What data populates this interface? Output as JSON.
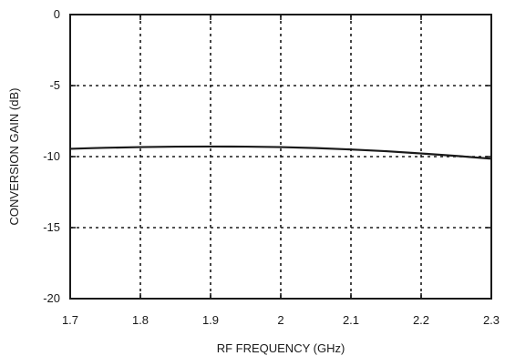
{
  "chart_data": {
    "type": "line",
    "xlabel": "RF FREQUENCY (GHz)",
    "ylabel": "CONVERSION GAIN (dB)",
    "xlim": [
      1.7,
      2.3
    ],
    "ylim": [
      -20,
      0
    ],
    "x_ticks": [
      1.7,
      1.8,
      1.9,
      2.0,
      2.1,
      2.2,
      2.3
    ],
    "x_tick_labels": [
      "1.7",
      "1.8",
      "1.9",
      "2",
      "2.1",
      "2.2",
      "2.3"
    ],
    "y_ticks": [
      0,
      -5,
      -10,
      -15,
      -20
    ],
    "y_tick_labels": [
      "0",
      "-5",
      "-10",
      "-15",
      "-20"
    ],
    "grid": true,
    "series": [
      {
        "x": [
          1.7,
          1.75,
          1.8,
          1.85,
          1.9,
          1.95,
          2.0,
          2.05,
          2.1,
          2.15,
          2.2,
          2.25,
          2.3
        ],
        "values": [
          -9.45,
          -9.38,
          -9.33,
          -9.3,
          -9.29,
          -9.3,
          -9.33,
          -9.4,
          -9.5,
          -9.62,
          -9.78,
          -9.95,
          -10.15
        ]
      }
    ]
  }
}
